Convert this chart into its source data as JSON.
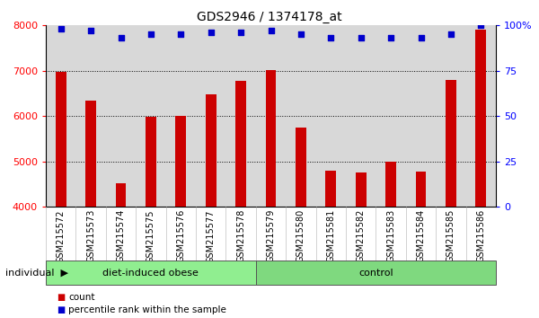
{
  "title": "GDS2946 / 1374178_at",
  "categories": [
    "GSM215572",
    "GSM215573",
    "GSM215574",
    "GSM215575",
    "GSM215576",
    "GSM215577",
    "GSM215578",
    "GSM215579",
    "GSM215580",
    "GSM215581",
    "GSM215582",
    "GSM215583",
    "GSM215584",
    "GSM215585",
    "GSM215586"
  ],
  "bar_values": [
    6980,
    6350,
    4520,
    5980,
    6010,
    6480,
    6780,
    7010,
    5750,
    4800,
    4750,
    5000,
    4780,
    6800,
    7900
  ],
  "bar_bottom": 4000,
  "percentile_values": [
    98,
    97,
    93,
    95,
    95,
    96,
    96,
    97,
    95,
    93,
    93,
    93,
    93,
    95,
    100
  ],
  "bar_color": "#cc0000",
  "dot_color": "#0000cc",
  "ylim_left": [
    4000,
    8000
  ],
  "ylim_right": [
    0,
    100
  ],
  "yticks_left": [
    4000,
    5000,
    6000,
    7000,
    8000
  ],
  "yticks_right": [
    0,
    25,
    50,
    75,
    100
  ],
  "group1_label": "diet-induced obese",
  "group1_count": 7,
  "group2_label": "control",
  "group2_count": 8,
  "individual_label": "individual",
  "legend_count": "count",
  "legend_percentile": "percentile rank within the sample",
  "group1_color": "#90EE90",
  "group2_color": "#7FD97F",
  "bg_color": "#d8d8d8",
  "title_fontsize": 10,
  "tick_fontsize": 7,
  "group_fontsize": 8
}
